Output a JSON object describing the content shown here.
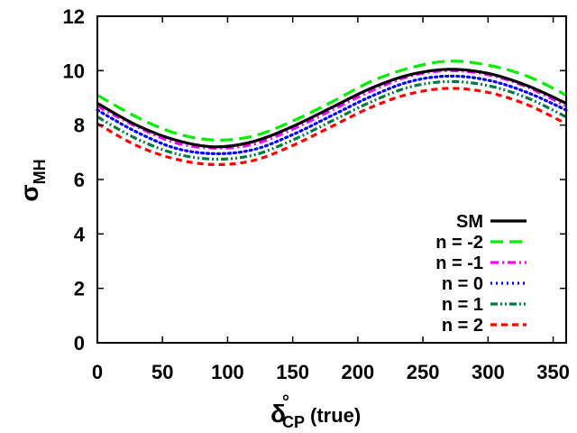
{
  "chart_data": {
    "type": "line",
    "title": "",
    "xlabel": {
      "symbol": "δ",
      "superscript": "°",
      "subscript": "CP",
      "suffix": "(true)"
    },
    "ylabel": {
      "symbol": "σ",
      "subscript": "MH"
    },
    "xlim": [
      0,
      360
    ],
    "ylim": [
      0,
      12
    ],
    "xticks": [
      0,
      50,
      100,
      150,
      200,
      250,
      300,
      350
    ],
    "yticks": [
      0,
      2,
      4,
      6,
      8,
      10,
      12
    ],
    "grid": false,
    "legend_position": "bottom-right",
    "x": [
      0,
      30,
      60,
      90,
      120,
      150,
      180,
      210,
      240,
      270,
      300,
      330,
      360
    ],
    "series": [
      {
        "name": "SM",
        "color": "#000000",
        "dash": "solid",
        "values": [
          8.8,
          8.0,
          7.45,
          7.2,
          7.4,
          7.95,
          8.65,
          9.35,
          9.85,
          10.05,
          9.9,
          9.45,
          8.8
        ]
      },
      {
        "name": "n = -2",
        "color": "#00ee00",
        "dash": "longdash",
        "values": [
          9.1,
          8.3,
          7.7,
          7.45,
          7.6,
          8.15,
          8.85,
          9.6,
          10.1,
          10.35,
          10.2,
          9.8,
          9.1
        ]
      },
      {
        "name": "n = -1",
        "color": "#ff00ff",
        "dash": "dashdot",
        "values": [
          8.7,
          7.95,
          7.35,
          7.15,
          7.3,
          7.85,
          8.55,
          9.25,
          9.8,
          10.0,
          9.85,
          9.4,
          8.7
        ]
      },
      {
        "name": "n = 0",
        "color": "#0000ff",
        "dash": "dot",
        "values": [
          8.55,
          7.75,
          7.15,
          6.95,
          7.1,
          7.65,
          8.35,
          9.05,
          9.6,
          9.8,
          9.65,
          9.2,
          8.55
        ]
      },
      {
        "name": "n = 1",
        "color": "#007a3d",
        "dash": "dashdotdot",
        "values": [
          8.3,
          7.5,
          6.95,
          6.75,
          6.9,
          7.45,
          8.15,
          8.85,
          9.4,
          9.6,
          9.45,
          9.0,
          8.3
        ]
      },
      {
        "name": "n = 2",
        "color": "#ff0000",
        "dash": "shortdash",
        "values": [
          8.05,
          7.25,
          6.75,
          6.55,
          6.7,
          7.25,
          7.95,
          8.65,
          9.15,
          9.35,
          9.2,
          8.75,
          8.05
        ]
      }
    ]
  }
}
